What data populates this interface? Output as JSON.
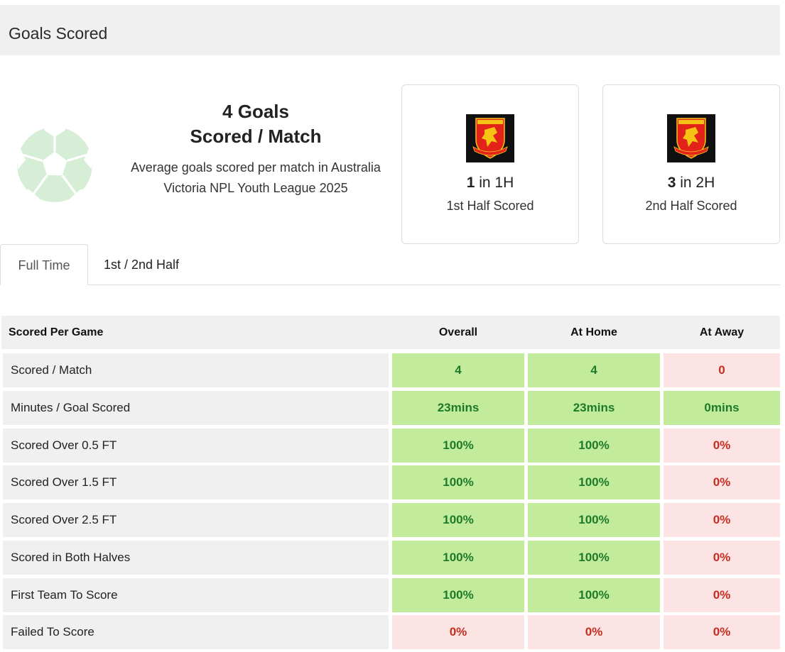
{
  "header": {
    "title": "Goals Scored"
  },
  "summary": {
    "big_line1": "4 Goals",
    "big_line2": "Scored / Match",
    "description": "Average goals scored per match in Australia Victoria NPL Youth League 2025"
  },
  "halves": [
    {
      "count": "1",
      "suffix": " in 1H",
      "label": "1st Half Scored"
    },
    {
      "count": "3",
      "suffix": " in 2H",
      "label": "2nd Half Scored"
    }
  ],
  "tabs": [
    {
      "label": "Full Time",
      "active": true
    },
    {
      "label": "1st / 2nd Half",
      "active": false
    }
  ],
  "table": {
    "headers": [
      "Scored Per Game",
      "Overall",
      "At Home",
      "At Away"
    ],
    "rows": [
      {
        "label": "Scored / Match",
        "values": [
          "4",
          "4",
          "0"
        ],
        "status": [
          "good",
          "good",
          "bad"
        ]
      },
      {
        "label": "Minutes / Goal Scored",
        "values": [
          "23mins",
          "23mins",
          "0mins"
        ],
        "status": [
          "good",
          "good",
          "good"
        ]
      },
      {
        "label": "Scored Over 0.5 FT",
        "values": [
          "100%",
          "100%",
          "0%"
        ],
        "status": [
          "good",
          "good",
          "bad"
        ]
      },
      {
        "label": "Scored Over 1.5 FT",
        "values": [
          "100%",
          "100%",
          "0%"
        ],
        "status": [
          "good",
          "good",
          "bad"
        ]
      },
      {
        "label": "Scored Over 2.5 FT",
        "values": [
          "100%",
          "100%",
          "0%"
        ],
        "status": [
          "good",
          "good",
          "bad"
        ]
      },
      {
        "label": "Scored in Both Halves",
        "values": [
          "100%",
          "100%",
          "0%"
        ],
        "status": [
          "good",
          "good",
          "bad"
        ]
      },
      {
        "label": "First Team To Score",
        "values": [
          "100%",
          "100%",
          "0%"
        ],
        "status": [
          "good",
          "good",
          "bad"
        ]
      },
      {
        "label": "Failed To Score",
        "values": [
          "0%",
          "0%",
          "0%"
        ],
        "status": [
          "bad",
          "bad",
          "bad"
        ]
      }
    ]
  },
  "icons": {
    "ball": "soccer-ball-icon",
    "crest": "team-crest-icon"
  },
  "colors": {
    "good_bg": "#c2ec9b",
    "good_text": "#1e7a2a",
    "bad_bg": "#fde4e4",
    "bad_text": "#c62d1f",
    "ball": "#d6eed6",
    "crest_bg": "#101010",
    "crest_shield": "#e32319",
    "crest_lion": "#f6c315"
  }
}
